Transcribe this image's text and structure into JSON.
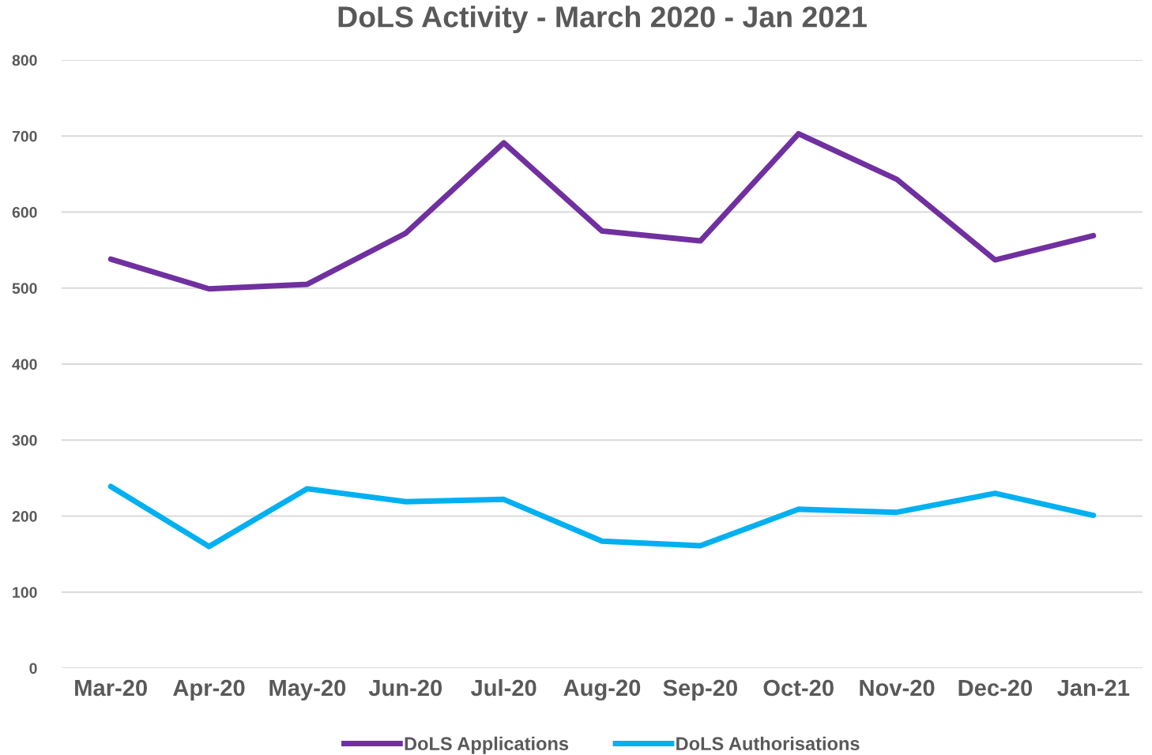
{
  "chart_data": {
    "type": "line",
    "title": "DoLS Activity - March 2020 - Jan 2021",
    "categories": [
      "Mar-20",
      "Apr-20",
      "May-20",
      "Jun-20",
      "Jul-20",
      "Aug-20",
      "Sep-20",
      "Oct-20",
      "Nov-20",
      "Dec-20",
      "Jan-21"
    ],
    "series": [
      {
        "name": "DoLS Applications",
        "color": "#7030a0",
        "values": [
          538,
          499,
          505,
          572,
          691,
          575,
          562,
          703,
          643,
          537,
          569
        ]
      },
      {
        "name": "DoLS Authorisations",
        "color": "#00b0f0",
        "values": [
          239,
          160,
          236,
          219,
          222,
          167,
          161,
          209,
          205,
          230,
          201
        ]
      }
    ],
    "ylim": [
      0,
      800
    ],
    "yticks": [
      0,
      100,
      200,
      300,
      400,
      500,
      600,
      700,
      800
    ],
    "grid": "y",
    "legend": "bottom",
    "marker": "none",
    "line_style": "solid"
  }
}
